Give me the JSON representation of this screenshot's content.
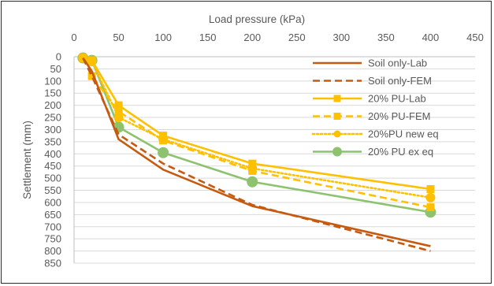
{
  "chart_data": {
    "type": "line",
    "xlabel": "Load pressure (kPa)",
    "ylabel": "Settlement (mm)",
    "xlim": [
      0,
      450
    ],
    "ylim": [
      0,
      850
    ],
    "x_ticks": [
      0,
      50,
      100,
      150,
      200,
      250,
      300,
      350,
      400,
      450
    ],
    "y_ticks": [
      0,
      50,
      100,
      150,
      200,
      250,
      300,
      350,
      400,
      450,
      500,
      550,
      600,
      650,
      700,
      750,
      800,
      850
    ],
    "x_axis_position": "top",
    "y_axis_reversed": true,
    "grid": "horizontal",
    "legend_position": "top-right",
    "series": [
      {
        "name": "Soil only-Lab",
        "color": "#C55A11",
        "style": "solid",
        "marker": "none",
        "x": [
          10,
          20,
          50,
          100,
          200,
          400
        ],
        "y": [
          5,
          60,
          340,
          465,
          615,
          780
        ]
      },
      {
        "name": "Soil only-FEM",
        "color": "#C55A11",
        "style": "dashed",
        "marker": "none",
        "x": [
          10,
          20,
          50,
          100,
          200,
          400
        ],
        "y": [
          5,
          80,
          320,
          440,
          610,
          800
        ]
      },
      {
        "name": "20% PU-Lab",
        "color": "#FFC000",
        "style": "solid",
        "marker": "square",
        "x": [
          10,
          20,
          50,
          100,
          200,
          400
        ],
        "y": [
          5,
          15,
          200,
          325,
          440,
          545
        ]
      },
      {
        "name": "20% PU-FEM",
        "color": "#FFC000",
        "style": "dashed",
        "marker": "square",
        "x": [
          10,
          20,
          50,
          100,
          200,
          400
        ],
        "y": [
          5,
          80,
          225,
          345,
          470,
          620
        ]
      },
      {
        "name": "20%PU new eq",
        "color": "#FFC000",
        "style": "dotted",
        "marker": "circle",
        "x": [
          10,
          20,
          50,
          100,
          200,
          400
        ],
        "y": [
          5,
          20,
          250,
          340,
          460,
          580
        ]
      },
      {
        "name": "20% PU ex eq",
        "color": "#8DC26F",
        "style": "solid",
        "marker": "circle",
        "x": [
          10,
          20,
          50,
          100,
          200,
          400
        ],
        "y": [
          5,
          15,
          290,
          395,
          515,
          640
        ]
      }
    ]
  }
}
